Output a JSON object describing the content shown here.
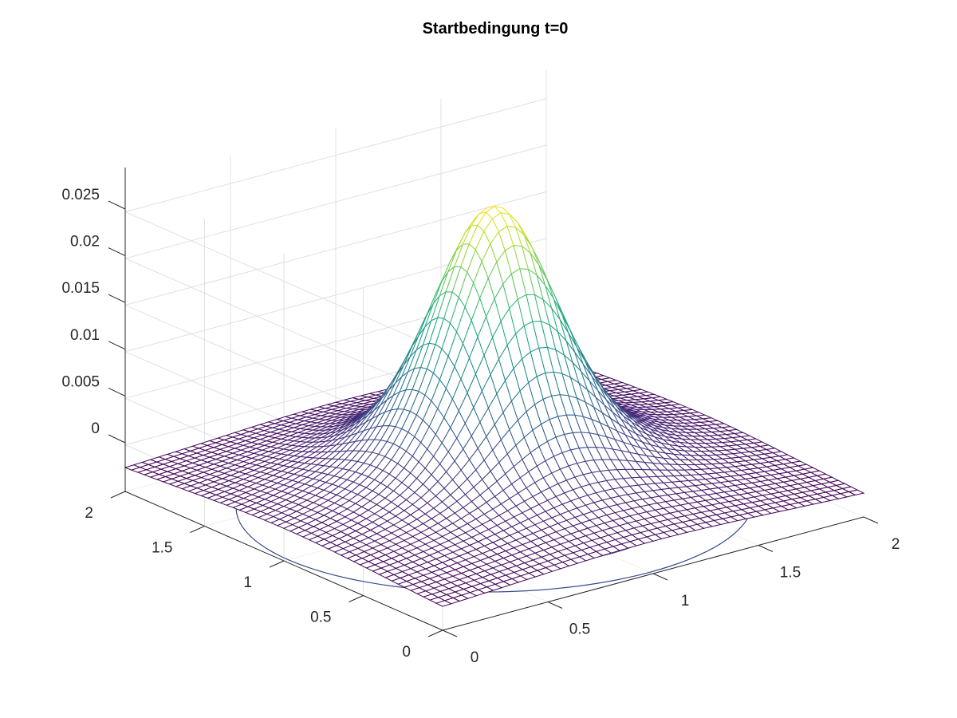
{
  "chart_data": {
    "type": "surface3d",
    "title": "Startbedingung t=0",
    "xlabel": "",
    "ylabel": "",
    "zlabel": "",
    "x_range": [
      0,
      2
    ],
    "y_range": [
      0,
      2
    ],
    "z_range": [
      -0.005,
      0.028
    ],
    "x_ticks": [
      "0",
      "0.5",
      "1",
      "1.5",
      "2"
    ],
    "y_ticks": [
      "0",
      "0.5",
      "1",
      "1.5",
      "2"
    ],
    "z_ticks": [
      "0",
      "0.005",
      "0.01",
      "0.015",
      "0.02",
      "0.025"
    ],
    "grid": true,
    "colormap": "viridis",
    "mesh_size": 51,
    "surface": {
      "peak_xy": [
        1,
        1
      ],
      "peak_value": 0.0265,
      "corner_value": -0.0025,
      "edge_midpoint_value": 0.0017
    },
    "contour_levels_on_floor": [
      0.0,
      0.002
    ],
    "colors": [
      "#440154",
      "#3b528b",
      "#21918c",
      "#5ec962",
      "#fde725"
    ]
  }
}
